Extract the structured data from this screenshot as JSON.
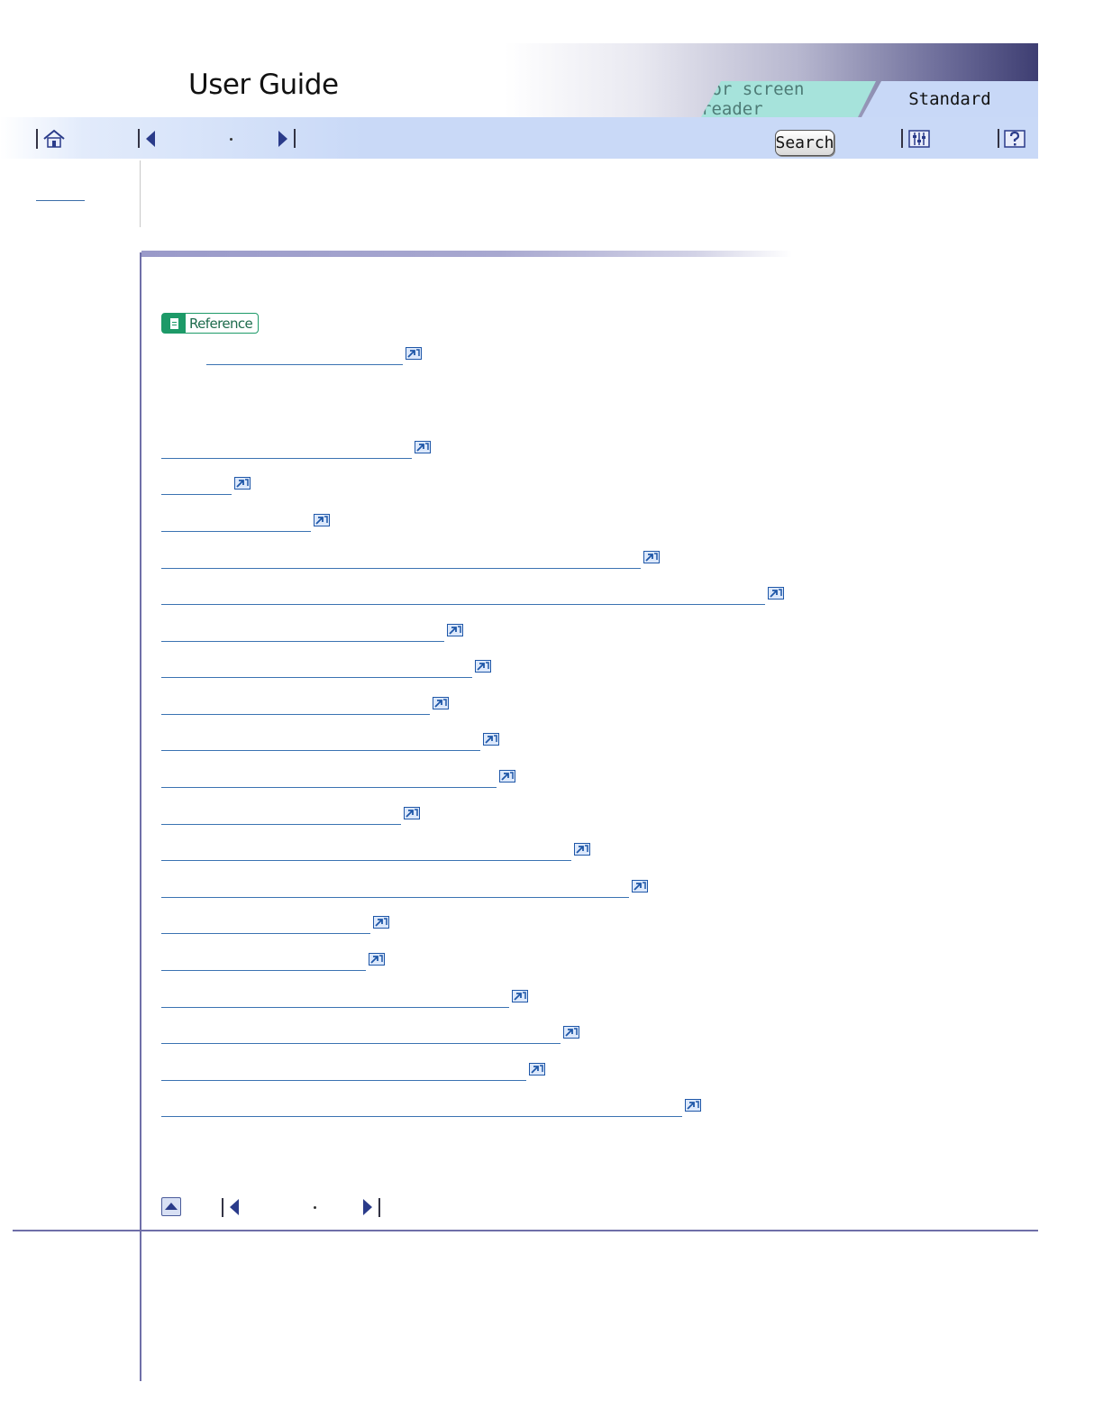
{
  "header": {
    "title": "User Guide",
    "tabs": [
      {
        "label": "For screen reader",
        "active": false
      },
      {
        "label": "Standard",
        "active": true
      }
    ]
  },
  "toolbar": {
    "search_label": "Search",
    "icons": [
      "home-icon",
      "prev-icon",
      "next-icon",
      "settings-icon",
      "help-icon"
    ]
  },
  "reference": {
    "badge_label": "Reference"
  },
  "links": {
    "count": 19
  },
  "colors": {
    "accent": "#6f6fa8",
    "toolbar": "#c9d9f7",
    "reference": "#1d9a68",
    "link": "#3b73b2",
    "tab_screen_reader": "#a6e3db"
  }
}
